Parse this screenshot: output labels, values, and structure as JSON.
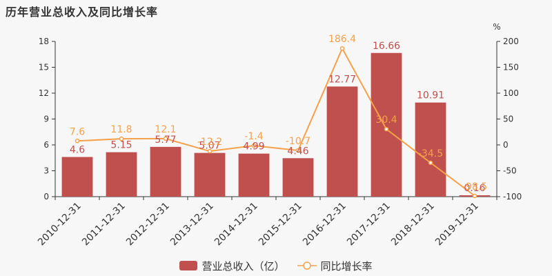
{
  "title": "历年营业总收入及同比增长率",
  "colors": {
    "bar": "#c0504d",
    "line": "#f7a04a",
    "axis": "#333333",
    "grid": "#dddddd"
  },
  "chart_data": {
    "type": "bar",
    "categories": [
      "2010-12-31",
      "2011-12-31",
      "2012-12-31",
      "2013-12-31",
      "2014-12-31",
      "2015-12-31",
      "2016-12-31",
      "2017-12-31",
      "2018-12-31",
      "2019-12-31"
    ],
    "series": [
      {
        "name": "营业总收入（亿）",
        "type": "bar",
        "axis": "left",
        "values": [
          4.6,
          5.15,
          5.77,
          5.07,
          4.99,
          4.46,
          12.77,
          16.66,
          10.91,
          0.16
        ],
        "labels": [
          "4.6",
          "5.15",
          "5.77",
          "5.07",
          "4.99",
          "4.46",
          "12.77",
          "16.66",
          "10.91",
          "0.16"
        ]
      },
      {
        "name": "同比增长率",
        "type": "line",
        "axis": "right",
        "values": [
          7.6,
          11.8,
          12.1,
          -12.2,
          -1.4,
          -10.7,
          186.4,
          30.4,
          -34.5,
          -98.5
        ],
        "labels": [
          "7.6",
          "11.8",
          "12.1",
          "-12.2",
          "-1.4",
          "-10.7",
          "186.4",
          "30.4",
          "-34.5",
          "-98.5"
        ]
      }
    ],
    "y_left": {
      "ylim": [
        0,
        18
      ],
      "ticks": [
        "0",
        "3",
        "6",
        "9",
        "12",
        "15",
        "18"
      ]
    },
    "y_right": {
      "ylim": [
        -100,
        200
      ],
      "ticks": [
        "-100",
        "-50",
        "0",
        "50",
        "100",
        "150",
        "200"
      ],
      "unit": "%"
    },
    "legend": "bottom-center",
    "grid": false
  }
}
